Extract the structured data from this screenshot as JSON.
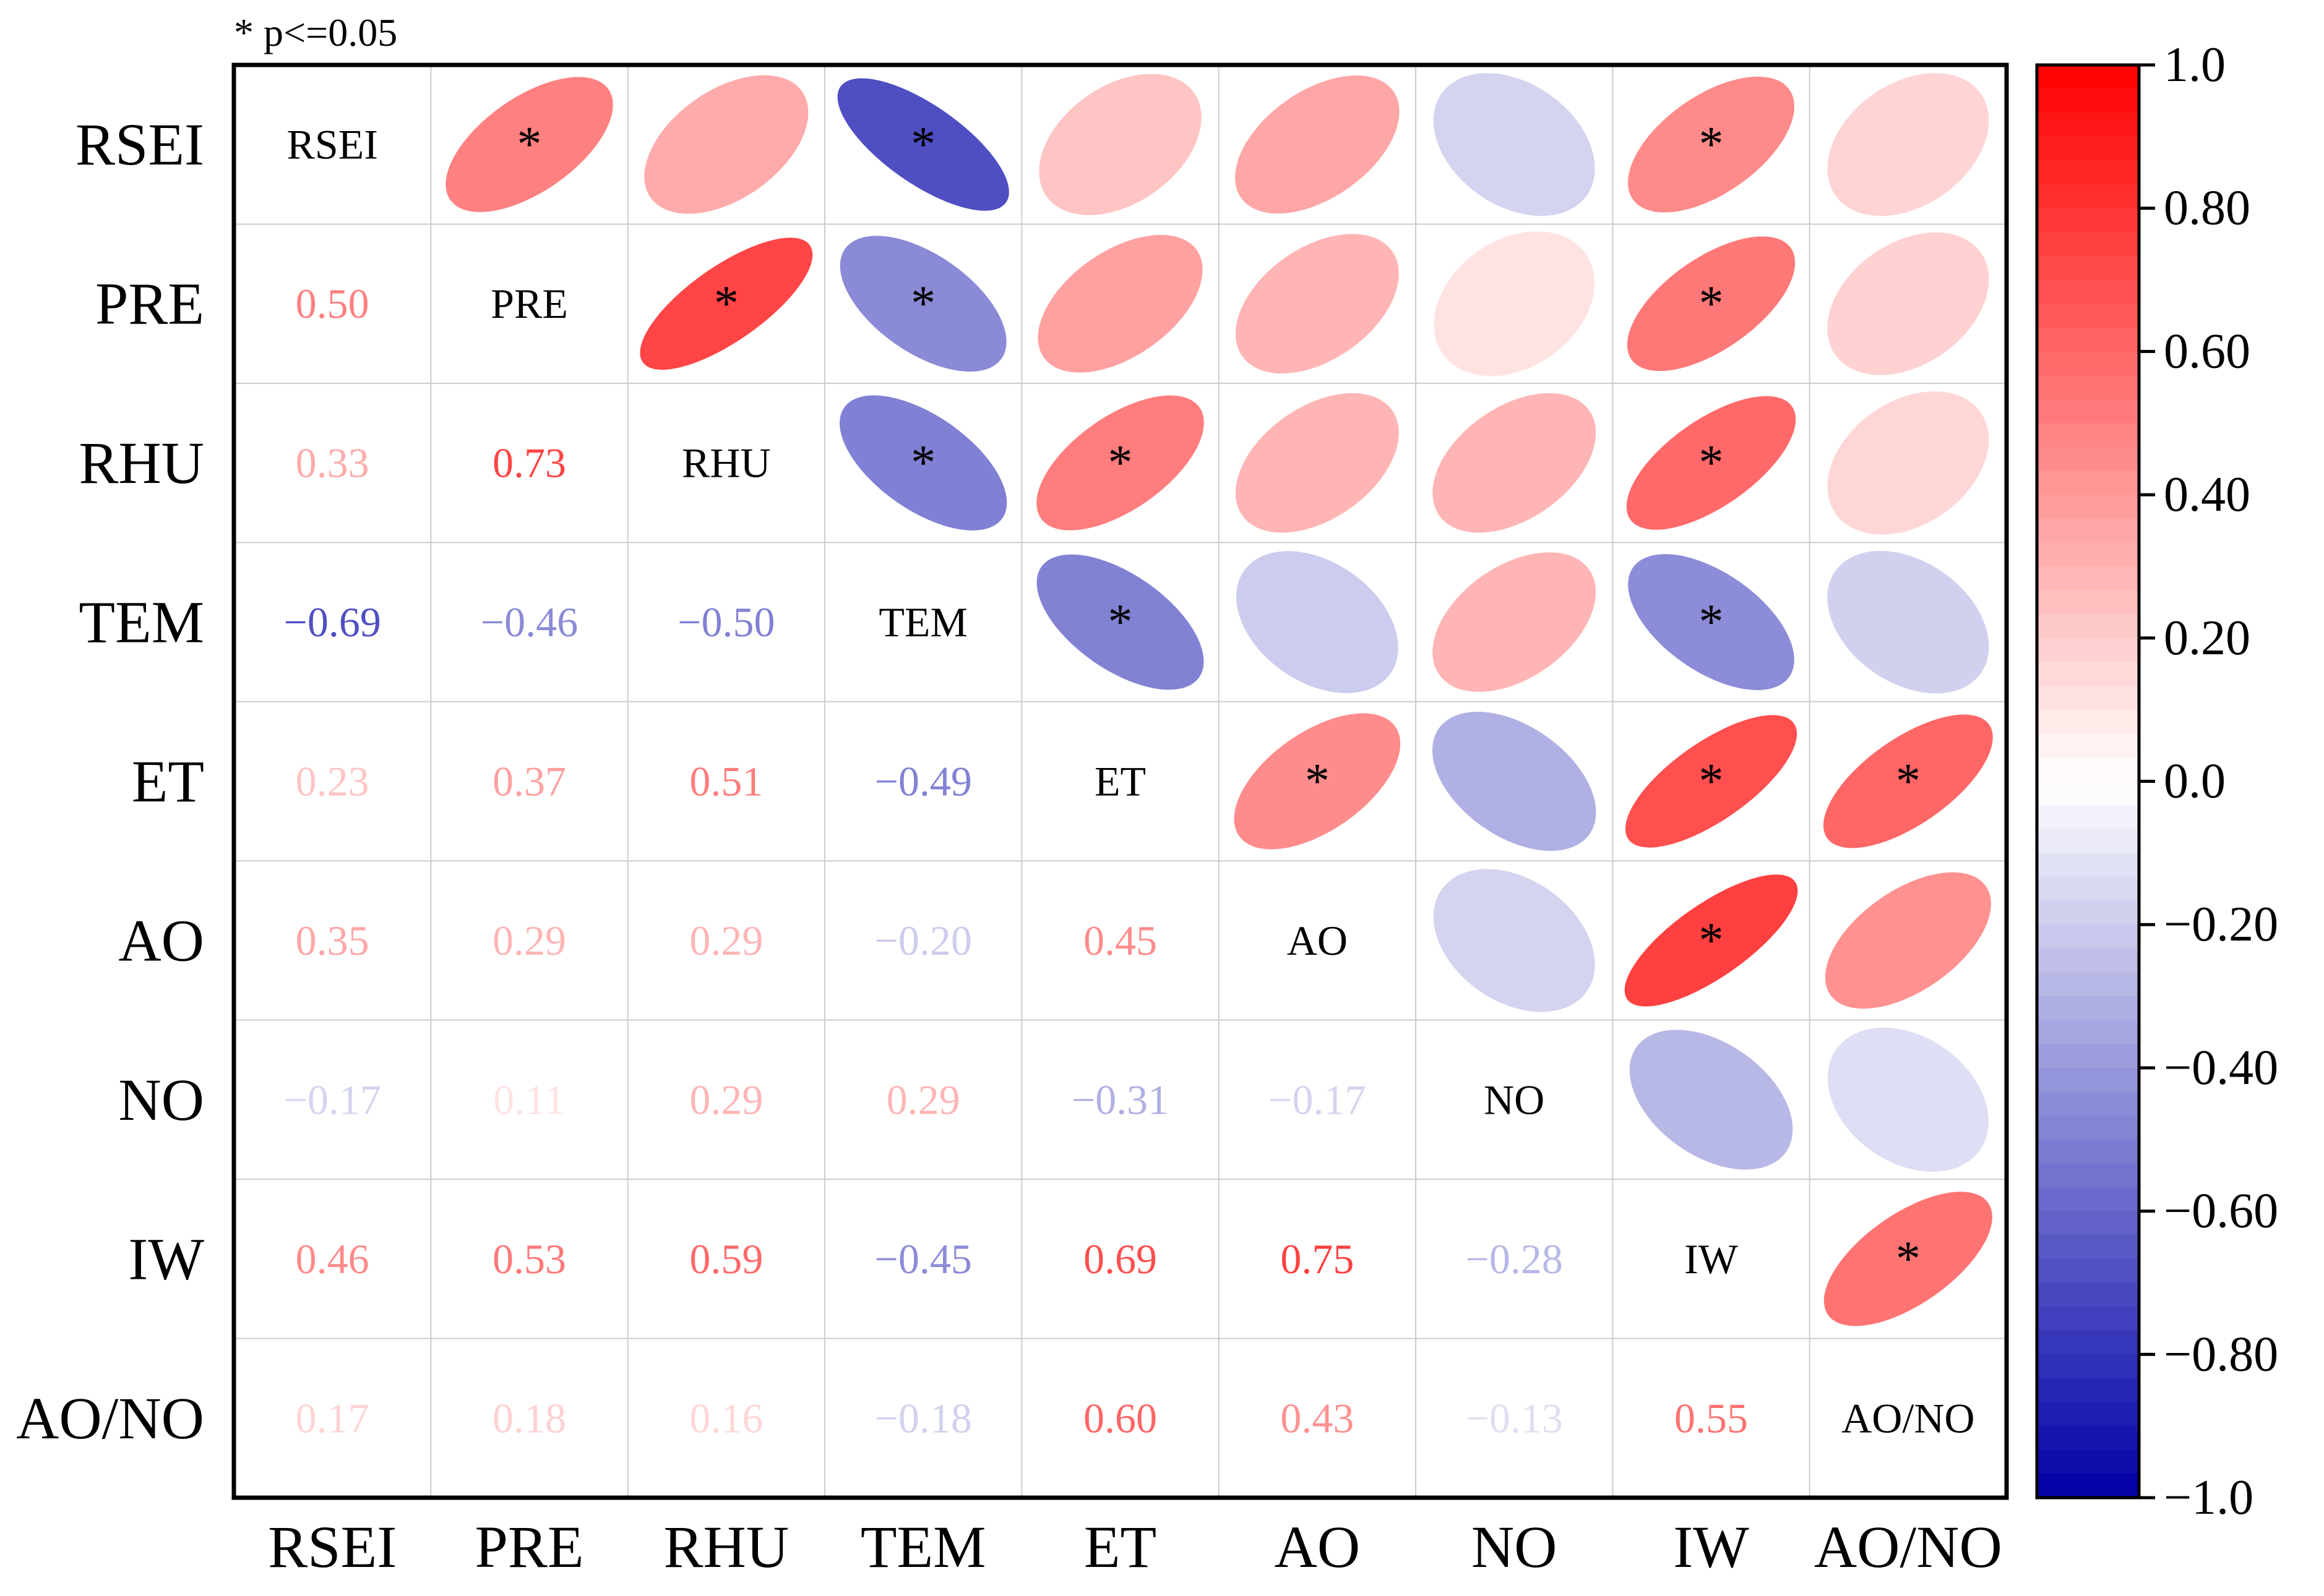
{
  "significance_note": "* p<=0.05",
  "colors": {
    "negative": "#0000a8",
    "neutral": "#ffffff",
    "positive": "#ff0000",
    "grid": "#cccccc",
    "frame": "#000000"
  },
  "chart_data": {
    "type": "heatmap",
    "variables": [
      "RSEI",
      "PRE",
      "RHU",
      "TEM",
      "ET",
      "AO",
      "NO",
      "IW",
      "AO/NO"
    ],
    "lower_triangle": "coefficient text",
    "upper_triangle": "ellipse",
    "diagonal": "variable name",
    "significance_marker": "*",
    "matrix": [
      [
        1,
        0.5,
        0.33,
        -0.69,
        0.23,
        0.35,
        -0.17,
        0.46,
        0.17
      ],
      [
        0.5,
        1,
        0.73,
        -0.46,
        0.37,
        0.29,
        0.11,
        0.53,
        0.18
      ],
      [
        0.33,
        0.73,
        1,
        -0.5,
        0.51,
        0.29,
        0.29,
        0.59,
        0.16
      ],
      [
        -0.69,
        -0.46,
        -0.5,
        1,
        -0.49,
        -0.2,
        0.29,
        -0.45,
        -0.18
      ],
      [
        0.23,
        0.37,
        0.51,
        -0.49,
        1,
        0.45,
        -0.31,
        0.69,
        0.6
      ],
      [
        0.35,
        0.29,
        0.29,
        -0.2,
        0.45,
        1,
        -0.17,
        0.75,
        0.43
      ],
      [
        -0.17,
        0.11,
        0.29,
        0.29,
        -0.31,
        -0.17,
        1,
        -0.28,
        -0.13
      ],
      [
        0.46,
        0.53,
        0.59,
        -0.45,
        0.69,
        0.75,
        -0.28,
        1,
        0.55
      ],
      [
        0.17,
        0.18,
        0.16,
        -0.18,
        0.6,
        0.43,
        -0.13,
        0.55,
        1
      ]
    ],
    "significant_pairs": [
      [
        "RSEI",
        "PRE"
      ],
      [
        "RSEI",
        "TEM"
      ],
      [
        "RSEI",
        "IW"
      ],
      [
        "PRE",
        "RHU"
      ],
      [
        "PRE",
        "TEM"
      ],
      [
        "PRE",
        "IW"
      ],
      [
        "RHU",
        "TEM"
      ],
      [
        "RHU",
        "ET"
      ],
      [
        "RHU",
        "IW"
      ],
      [
        "TEM",
        "ET"
      ],
      [
        "TEM",
        "IW"
      ],
      [
        "ET",
        "AO"
      ],
      [
        "ET",
        "IW"
      ],
      [
        "ET",
        "AO/NO"
      ],
      [
        "AO",
        "IW"
      ],
      [
        "IW",
        "AO/NO"
      ]
    ],
    "colorbar": {
      "range": [
        -1.0,
        1.0
      ],
      "ticks": [
        1.0,
        0.8,
        0.6,
        0.4,
        0.2,
        0.0,
        -0.2,
        -0.4,
        -0.6,
        -0.8,
        -1.0
      ],
      "tick_labels": [
        "1.0",
        "0.80",
        "0.60",
        "0.40",
        "0.20",
        "0.0",
        "−0.20",
        "−0.40",
        "−0.60",
        "−0.80",
        "−1.0"
      ]
    }
  }
}
